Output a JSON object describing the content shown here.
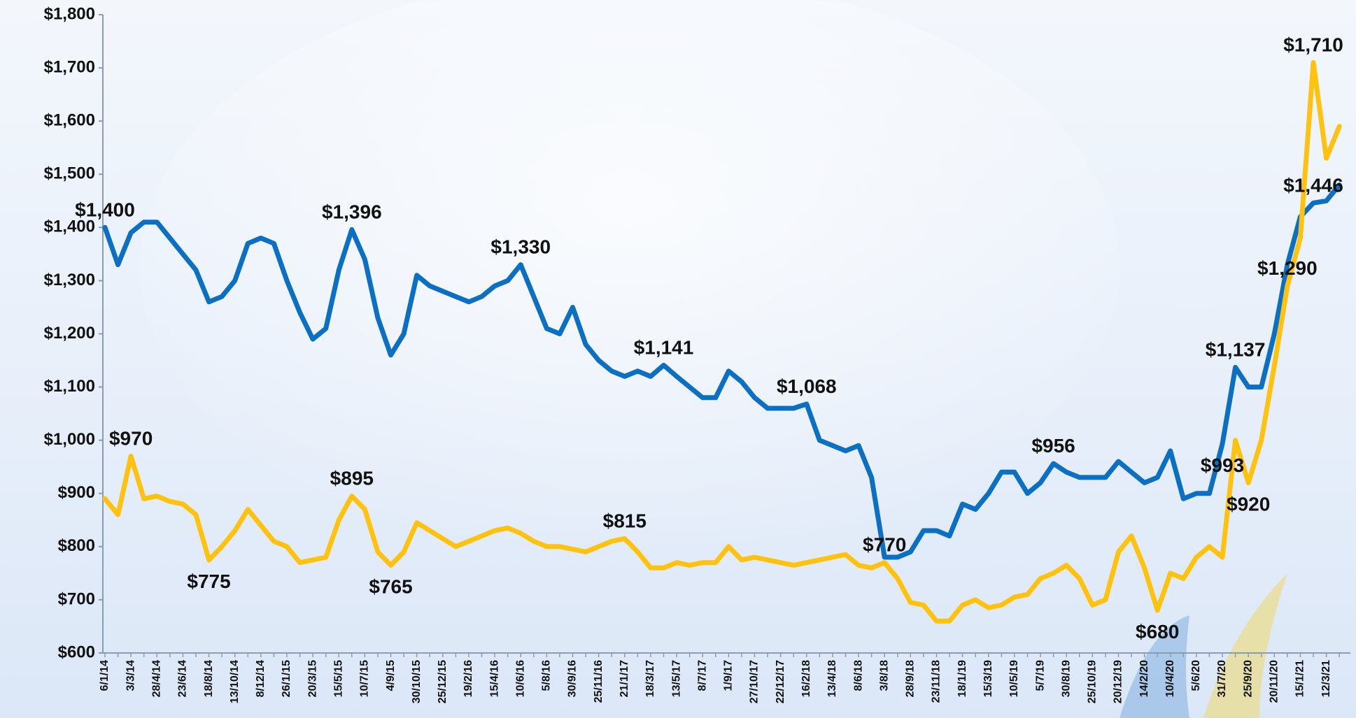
{
  "chart_data": {
    "type": "line",
    "categories": [
      "6/1/14",
      null,
      "3/3/14",
      null,
      "28/4/14",
      null,
      "23/6/14",
      null,
      "18/8/14",
      null,
      "13/10/14",
      null,
      "8/12/14",
      null,
      "26/1/15",
      null,
      "20/3/15",
      null,
      "15/5/15",
      null,
      "10/7/15",
      null,
      "4/9/15",
      null,
      "30/10/15",
      null,
      "25/12/15",
      null,
      "19/2/16",
      null,
      "15/4/16",
      null,
      "10/6/16",
      null,
      "5/8/16",
      null,
      "30/9/16",
      null,
      "25/11/16",
      null,
      "21/1/17",
      null,
      "18/3/17",
      null,
      "13/5/17",
      null,
      "8/7/17",
      null,
      "1/9/17",
      null,
      "27/10/17",
      null,
      "22/12/17",
      null,
      "16/2/18",
      null,
      "13/4/18",
      null,
      "8/6/18",
      null,
      "3/8/18",
      null,
      "28/9/18",
      null,
      "23/11/18",
      null,
      "18/1/19",
      null,
      "15/3/19",
      null,
      "10/5/19",
      null,
      "5/7/19",
      null,
      "30/8/19",
      null,
      "25/10/19",
      null,
      "20/12/19",
      null,
      "14/2/20",
      null,
      "10/4/20",
      null,
      "5/6/20",
      null,
      "31/7/20",
      null,
      "25/9/20",
      null,
      "20/11/20",
      null,
      "15/1/21",
      null,
      "12/3/21",
      null
    ],
    "series": [
      {
        "color": "#0b6fc4",
        "values": [
          1400,
          1330,
          1390,
          1410,
          1410,
          1380,
          1350,
          1320,
          1260,
          1270,
          1300,
          1370,
          1380,
          1370,
          1300,
          1240,
          1190,
          1210,
          1320,
          1396,
          1340,
          1230,
          1160,
          1200,
          1310,
          1290,
          1280,
          1270,
          1260,
          1270,
          1290,
          1300,
          1330,
          1270,
          1210,
          1200,
          1250,
          1180,
          1150,
          1130,
          1120,
          1130,
          1120,
          1141,
          1120,
          1100,
          1080,
          1080,
          1130,
          1110,
          1080,
          1060,
          1060,
          1060,
          1068,
          1000,
          990,
          980,
          990,
          930,
          780,
          780,
          790,
          830,
          830,
          820,
          880,
          870,
          900,
          940,
          940,
          900,
          920,
          956,
          940,
          930,
          930,
          930,
          960,
          940,
          920,
          930,
          980,
          890,
          900,
          900,
          993,
          1137,
          1100,
          1100,
          1200,
          1330,
          1420,
          1446,
          1450,
          1480
        ],
        "value_labels": [
          "$1,400",
          null,
          null,
          null,
          null,
          null,
          null,
          null,
          null,
          null,
          null,
          null,
          null,
          null,
          null,
          null,
          null,
          null,
          null,
          "$1,396",
          null,
          null,
          null,
          null,
          null,
          null,
          null,
          null,
          null,
          null,
          null,
          null,
          "$1,330",
          null,
          null,
          null,
          null,
          null,
          null,
          null,
          null,
          null,
          null,
          "$1,141",
          null,
          null,
          null,
          null,
          null,
          null,
          null,
          null,
          null,
          null,
          "$1,068",
          null,
          null,
          null,
          null,
          null,
          null,
          null,
          null,
          null,
          null,
          null,
          null,
          null,
          null,
          null,
          null,
          null,
          null,
          "$956",
          null,
          null,
          null,
          null,
          null,
          null,
          null,
          null,
          null,
          null,
          null,
          null,
          "$993",
          "$1,137",
          null,
          null,
          null,
          null,
          null,
          "$1,446",
          null,
          null
        ]
      },
      {
        "color": "#ffc20e",
        "values": [
          890,
          860,
          970,
          890,
          895,
          885,
          880,
          860,
          775,
          800,
          830,
          870,
          840,
          810,
          800,
          770,
          775,
          780,
          850,
          895,
          870,
          790,
          765,
          790,
          845,
          830,
          815,
          800,
          810,
          820,
          830,
          835,
          825,
          810,
          800,
          800,
          795,
          790,
          800,
          810,
          815,
          790,
          760,
          760,
          770,
          765,
          770,
          770,
          800,
          775,
          780,
          775,
          770,
          765,
          770,
          775,
          780,
          785,
          765,
          760,
          770,
          740,
          695,
          690,
          660,
          660,
          690,
          700,
          685,
          690,
          705,
          710,
          740,
          750,
          765,
          740,
          690,
          700,
          790,
          820,
          760,
          680,
          750,
          740,
          780,
          800,
          780,
          1000,
          920,
          1000,
          1140,
          1290,
          1380,
          1710,
          1530,
          1590
        ],
        "value_labels": [
          null,
          null,
          "$970",
          null,
          null,
          null,
          null,
          null,
          "$775",
          null,
          null,
          null,
          null,
          null,
          null,
          null,
          null,
          null,
          null,
          "$895",
          null,
          null,
          "$765",
          null,
          null,
          null,
          null,
          null,
          null,
          null,
          null,
          null,
          null,
          null,
          null,
          null,
          null,
          null,
          null,
          null,
          "$815",
          null,
          null,
          null,
          null,
          null,
          null,
          null,
          null,
          null,
          null,
          null,
          null,
          null,
          null,
          null,
          null,
          null,
          null,
          null,
          "$770",
          null,
          null,
          null,
          null,
          null,
          null,
          null,
          null,
          null,
          null,
          null,
          null,
          null,
          null,
          null,
          null,
          null,
          null,
          null,
          null,
          "$680",
          null,
          null,
          null,
          null,
          null,
          null,
          "$920",
          null,
          null,
          "$1,290",
          null,
          "$1,710",
          null,
          null
        ]
      }
    ],
    "ylim": [
      600,
      1800
    ],
    "yticks": [
      {
        "value": 600,
        "label": "$600"
      },
      {
        "value": 700,
        "label": "$700"
      },
      {
        "value": 800,
        "label": "$800"
      },
      {
        "value": 900,
        "label": "$900"
      },
      {
        "value": 1000,
        "label": "$1,000"
      },
      {
        "value": 1100,
        "label": "$1,100"
      },
      {
        "value": 1200,
        "label": "$1,200"
      },
      {
        "value": 1300,
        "label": "$1,300"
      },
      {
        "value": 1400,
        "label": "$1,400"
      },
      {
        "value": 1500,
        "label": "$1,500"
      },
      {
        "value": 1600,
        "label": "$1,600"
      },
      {
        "value": 1700,
        "label": "$1,700"
      },
      {
        "value": 1800,
        "label": "$1,800"
      }
    ]
  }
}
